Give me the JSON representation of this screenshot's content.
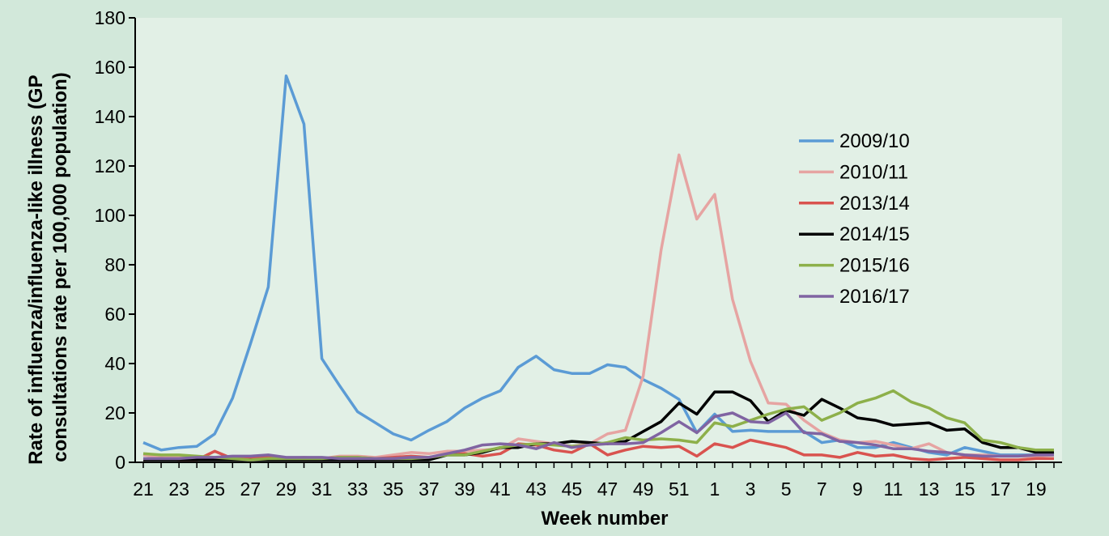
{
  "chart_data": {
    "type": "line",
    "title": "",
    "xlabel": "Week number",
    "ylabel_lines": [
      "Rate of influenza/influenza-like illness (GP",
      "consultations rate per 100,000 population)"
    ],
    "ylim": [
      0,
      180
    ],
    "yticks": [
      0,
      20,
      40,
      60,
      80,
      100,
      120,
      140,
      160,
      180
    ],
    "grid": false,
    "legend_position": "right",
    "x": [
      21,
      22,
      23,
      24,
      25,
      26,
      27,
      28,
      29,
      30,
      31,
      32,
      33,
      34,
      35,
      36,
      37,
      38,
      39,
      40,
      41,
      42,
      43,
      44,
      45,
      46,
      47,
      48,
      49,
      50,
      51,
      52,
      1,
      2,
      3,
      4,
      5,
      6,
      7,
      8,
      9,
      10,
      11,
      12,
      13,
      14,
      15,
      16,
      17,
      18,
      19,
      20
    ],
    "x_tick_labels": [
      "21",
      "23",
      "25",
      "27",
      "29",
      "31",
      "33",
      "35",
      "37",
      "39",
      "41",
      "43",
      "45",
      "47",
      "49",
      "51",
      "1",
      "3",
      "5",
      "7",
      "9",
      "11",
      "13",
      "15",
      "17",
      "19"
    ],
    "series": [
      {
        "name": "2009/10",
        "color": "#5b9bd5",
        "values": [
          8,
          5,
          6,
          6.5,
          11.5,
          26,
          48,
          71,
          156.5,
          137,
          42,
          31,
          20.5,
          16,
          11.5,
          9,
          13,
          16.5,
          22,
          26,
          29,
          38.5,
          43,
          37.5,
          36,
          36,
          39.5,
          38.5,
          33.5,
          30,
          25.5,
          12,
          19.5,
          12.5,
          13,
          12.5,
          12.5,
          12.5,
          8,
          9,
          6,
          6,
          8,
          6,
          4,
          3,
          6,
          4.5,
          3,
          3,
          3,
          4
        ]
      },
      {
        "name": "2010/11",
        "color": "#e6a4a2",
        "values": [
          3,
          2,
          2,
          2,
          2,
          1.5,
          1.5,
          2,
          1.5,
          2,
          1.5,
          2.5,
          2.5,
          2,
          3,
          4,
          3.5,
          4.5,
          4.5,
          5,
          5.5,
          9.5,
          8.5,
          7.5,
          6.5,
          7.5,
          11.5,
          13,
          35,
          86,
          124.5,
          98.5,
          108.5,
          66,
          41,
          24,
          23.5,
          17,
          12,
          9,
          8,
          8.5,
          7,
          5.5,
          7.5,
          4,
          3,
          3,
          2.5,
          2.5,
          2.5,
          3
        ]
      },
      {
        "name": "2013/14",
        "color": "#d9534f",
        "values": [
          1,
          1.5,
          1,
          1,
          4.5,
          1.5,
          1.5,
          2,
          1.5,
          1.5,
          1.5,
          2,
          2,
          1.5,
          2,
          2.5,
          2,
          3,
          3.5,
          2.5,
          3.5,
          7.5,
          7,
          5,
          4,
          7.5,
          3,
          5,
          6.5,
          6,
          6.5,
          2.5,
          7.5,
          6,
          9,
          7.5,
          6,
          3,
          3,
          2,
          4,
          2.5,
          3,
          1.5,
          1,
          1.5,
          2,
          1.5,
          1,
          1,
          1.5,
          1.5
        ]
      },
      {
        "name": "2014/15",
        "color": "#000000",
        "values": [
          1,
          1,
          1,
          1,
          1,
          1,
          1,
          1,
          1,
          1,
          1,
          1,
          1,
          1,
          1,
          1,
          1,
          3,
          3,
          4,
          6,
          6,
          7.5,
          7.5,
          8.5,
          8,
          7.5,
          8.5,
          12.5,
          16.5,
          24,
          19.5,
          28.5,
          28.5,
          25,
          16.5,
          21,
          19,
          25.5,
          22,
          18,
          17,
          15,
          15.5,
          16,
          13,
          13.5,
          8,
          6,
          6,
          4,
          4
        ]
      },
      {
        "name": "2015/16",
        "color": "#8db04a",
        "values": [
          3.5,
          3,
          3,
          2.5,
          2,
          1.5,
          1,
          1.5,
          1.5,
          1.5,
          1.5,
          2,
          2,
          1.5,
          1.5,
          1.5,
          2,
          3,
          3,
          4.5,
          6,
          7,
          7.5,
          7,
          6.5,
          7,
          8,
          10,
          9,
          9.5,
          9,
          8,
          16,
          14.5,
          17,
          19.5,
          21.5,
          22.5,
          17,
          20,
          24,
          26,
          29,
          24.5,
          22,
          18,
          16,
          9,
          8,
          6,
          5,
          5
        ]
      },
      {
        "name": "2016/17",
        "color": "#8064a2",
        "values": [
          1.5,
          1.5,
          1.5,
          2,
          2,
          2.5,
          2.5,
          3,
          2,
          2,
          2,
          1.5,
          1.5,
          1.5,
          1.5,
          2,
          2,
          3.5,
          5,
          7,
          7.5,
          7,
          5.5,
          8,
          6,
          7,
          7.5,
          7.5,
          8,
          12,
          16.5,
          12,
          18.5,
          20,
          16.5,
          16,
          20,
          12,
          11.5,
          8.5,
          8,
          7,
          5.5,
          5.5,
          4.5,
          4,
          3,
          2.5,
          2.5,
          2.5,
          3,
          3
        ]
      }
    ]
  }
}
